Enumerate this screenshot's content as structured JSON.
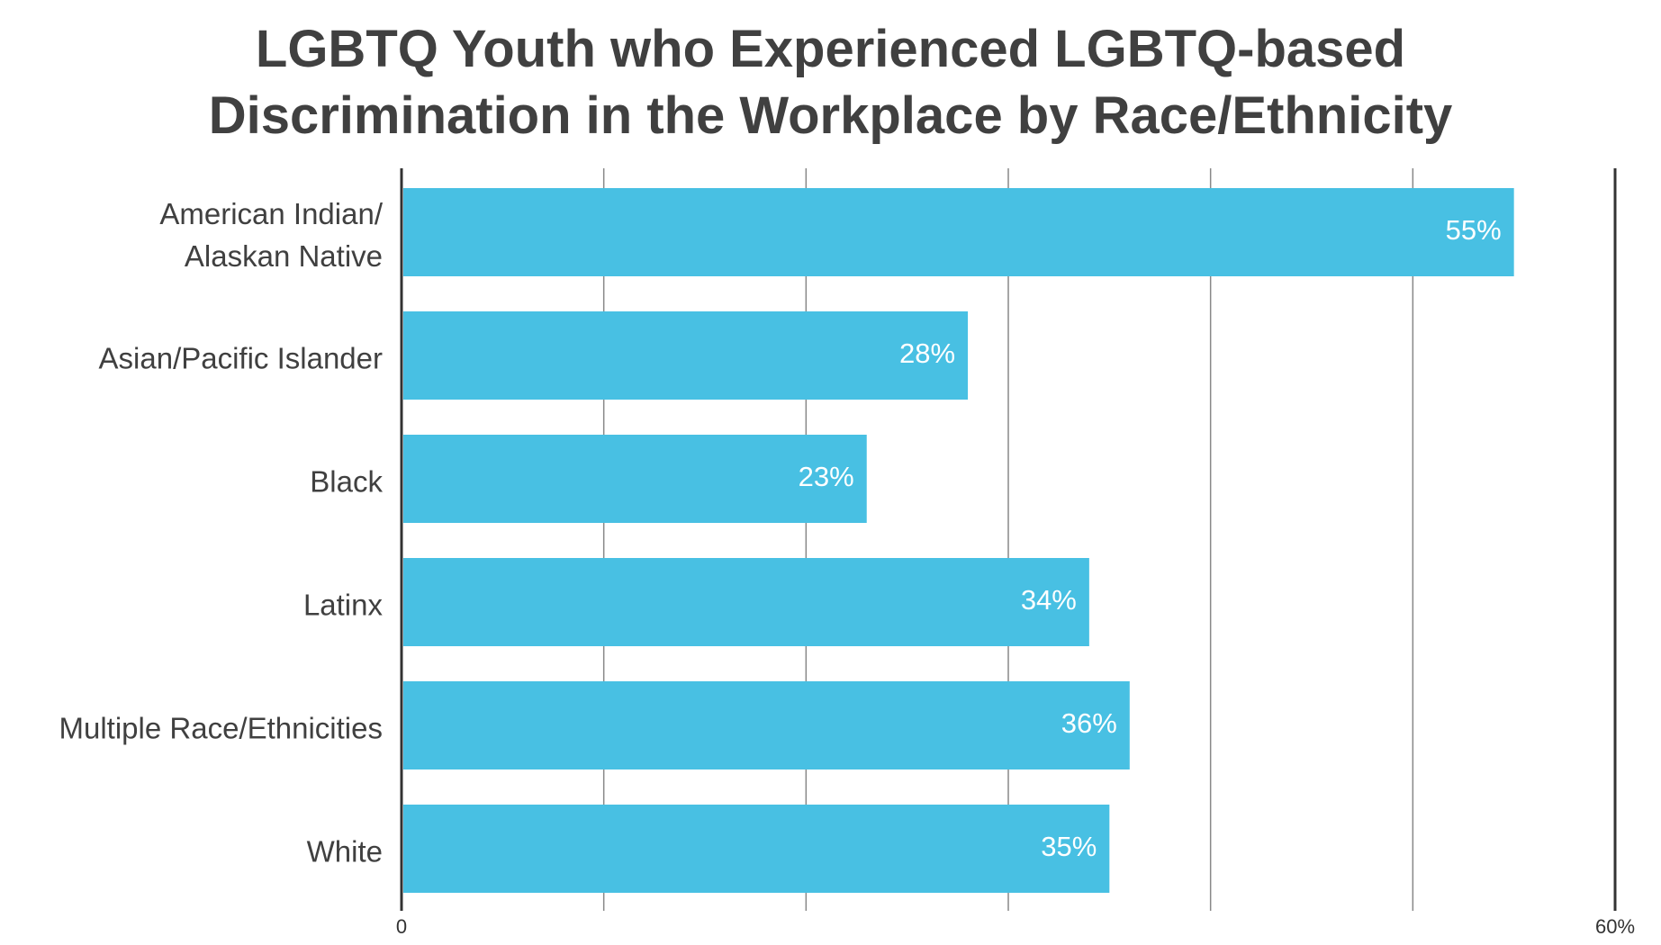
{
  "chart_data": {
    "type": "bar",
    "orientation": "horizontal",
    "title": "LGBTQ Youth who Experienced LGBTQ-based\nDiscrimination in the Workplace by Race/Ethnicity",
    "categories": [
      "American Indian/\nAlaskan Native",
      "Asian/Pacific Islander",
      "Black",
      "Latinx",
      "Multiple Race/Ethnicities",
      "White"
    ],
    "values": [
      55,
      28,
      23,
      34,
      36,
      35
    ],
    "value_labels": [
      "55%",
      "28%",
      "23%",
      "34%",
      "36%",
      "35%"
    ],
    "color": "#48c0e3",
    "xlim": [
      0,
      60
    ],
    "xticks": [
      0,
      {
        "value": 10,
        "label": null
      },
      {
        "value": 20,
        "label": null
      },
      {
        "value": 30,
        "label": null
      },
      {
        "value": 40,
        "label": null
      },
      {
        "value": 50,
        "label": null
      },
      {
        "value": 60,
        "label": "60%"
      }
    ],
    "grid": true
  }
}
